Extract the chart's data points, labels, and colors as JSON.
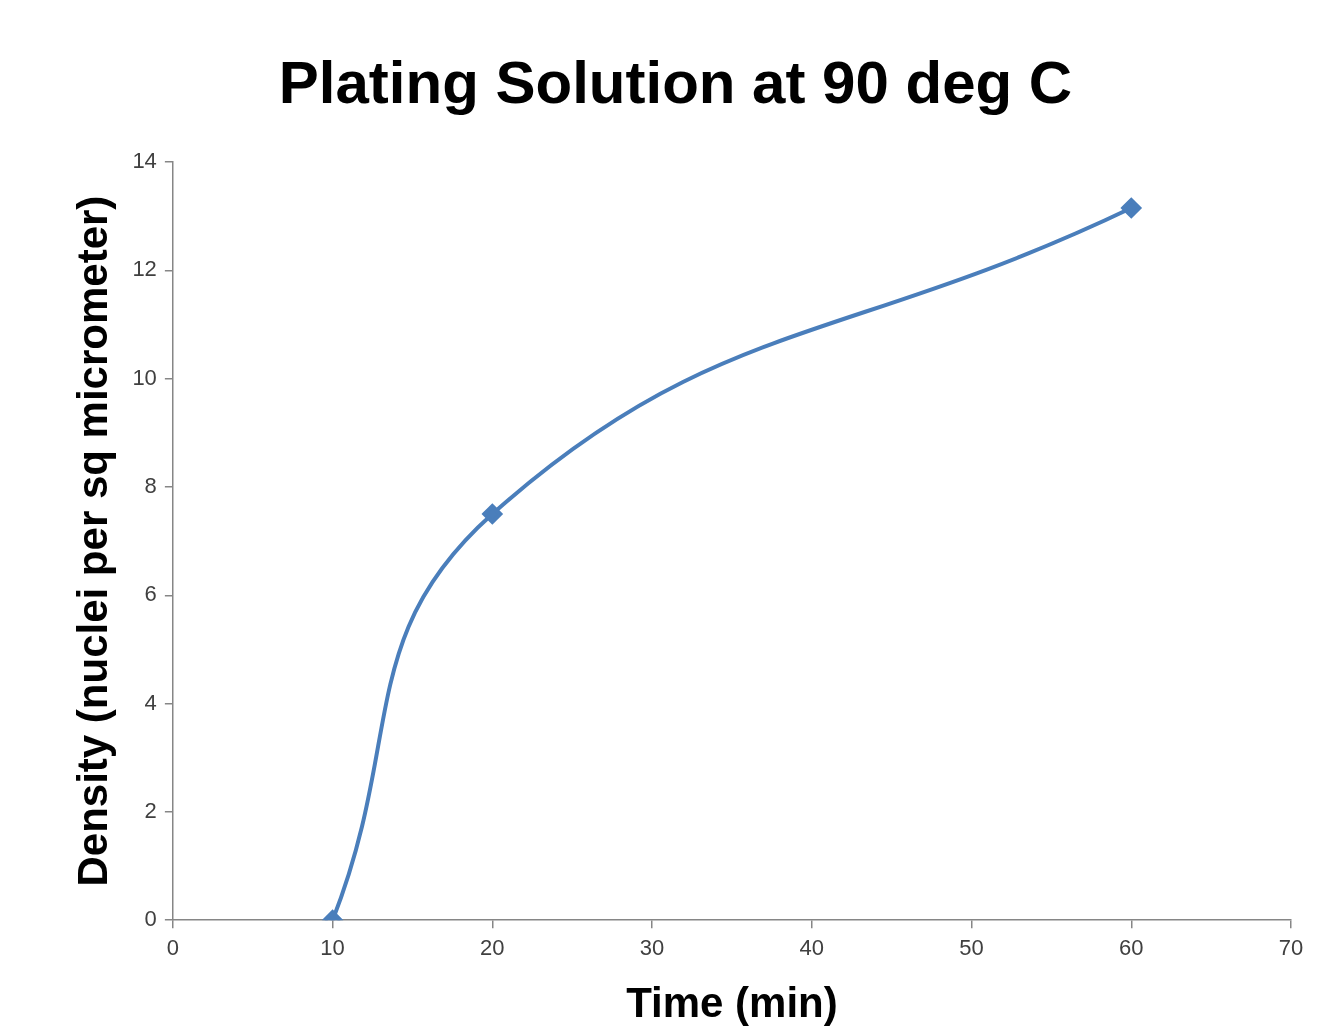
{
  "chart_data": {
    "type": "line",
    "title": "Plating Solution at 90 deg C",
    "xlabel": "Time (min)",
    "ylabel": "Density (nuclei per sq micrometer)",
    "x": [
      10,
      20,
      60
    ],
    "series": [
      {
        "color": "#4a7ebb",
        "values": [
          0,
          7.5,
          13.15
        ]
      }
    ],
    "xlim": [
      0,
      70
    ],
    "xticks": [
      0,
      10,
      20,
      30,
      40,
      50,
      60,
      70
    ],
    "ylim": [
      0,
      14
    ],
    "yticks": [
      0,
      2,
      4,
      6,
      8,
      10,
      12,
      14
    ],
    "grid": false,
    "legend": false,
    "marker": "diamond",
    "line_style": "solid"
  }
}
